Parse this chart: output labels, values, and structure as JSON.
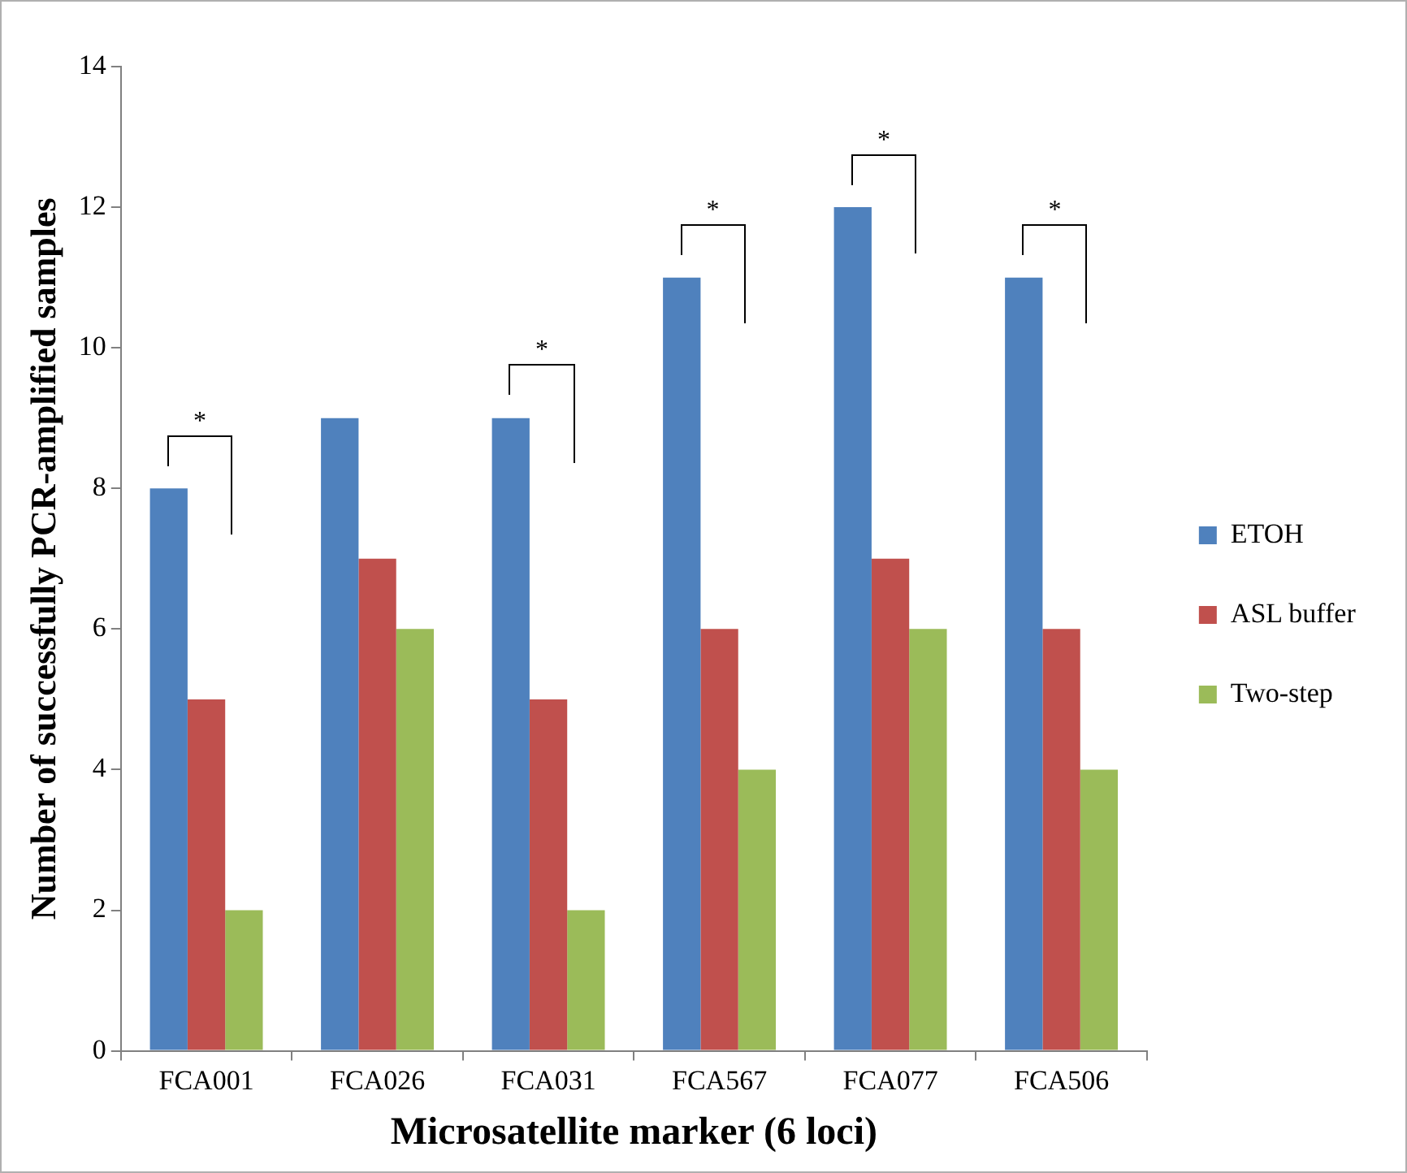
{
  "chart_data": {
    "type": "bar",
    "xlabel": "Microsatellite marker (6 loci)",
    "ylabel": "Number of successfully PCR-amplified samples",
    "categories": [
      "FCA001",
      "FCA026",
      "FCA031",
      "FCA567",
      "FCA077",
      "FCA506"
    ],
    "series": [
      {
        "name": "ETOH",
        "color": "#4f81bd",
        "values": [
          8,
          9,
          9,
          11,
          12,
          11
        ]
      },
      {
        "name": "ASL buffer",
        "color": "#c0504d",
        "values": [
          5,
          7,
          5,
          6,
          7,
          6
        ]
      },
      {
        "name": "Two-step",
        "color": "#9bbb59",
        "values": [
          2,
          6,
          2,
          4,
          6,
          4
        ]
      }
    ],
    "ylim": [
      0,
      14
    ],
    "yticks": [
      0,
      2,
      4,
      6,
      8,
      10,
      12,
      14
    ],
    "grid": false,
    "legend": "right",
    "annotations": [
      "*",
      "*",
      "*",
      "*",
      "*"
    ]
  }
}
